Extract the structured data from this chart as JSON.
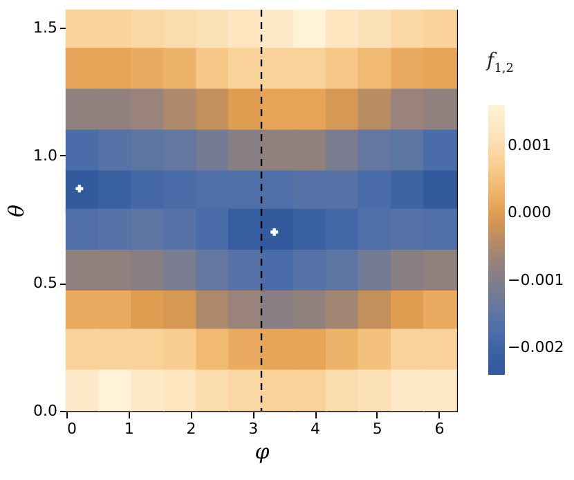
{
  "chart_data": {
    "type": "scatter",
    "xlabel": "φ",
    "ylabel": "θ",
    "clabel": "f$_{1,2}$",
    "series": [
      {
        "marker": "square",
        "x": [
          0.26,
          0.79,
          1.31,
          1.83,
          2.36,
          2.88,
          3.4,
          3.93,
          4.45,
          4.97,
          5.5,
          6.02,
          0.26,
          0.79,
          1.31,
          1.83,
          2.36,
          2.88,
          3.4,
          3.93,
          4.45,
          4.97,
          5.5,
          6.02,
          0.26,
          0.79,
          1.31,
          1.83,
          2.36,
          2.88,
          3.4,
          3.93,
          4.45,
          4.97,
          5.5,
          6.02,
          0.26,
          0.79,
          1.31,
          1.83,
          2.36,
          2.88,
          3.4,
          3.93,
          4.45,
          4.97,
          5.5,
          6.02,
          0.26,
          0.79,
          1.31,
          1.83,
          2.36,
          2.88,
          3.4,
          3.93,
          4.45,
          4.97,
          5.5,
          6.02,
          0.26,
          0.79,
          1.31,
          1.83,
          2.36,
          2.88,
          3.4,
          3.93,
          4.45,
          4.97,
          5.5,
          6.02,
          0.26,
          0.79,
          1.31,
          1.83,
          2.36,
          2.88,
          3.4,
          3.93,
          4.45,
          4.97,
          5.5,
          6.02,
          0.26,
          0.79,
          1.31,
          1.83,
          2.36,
          2.88,
          3.4,
          3.93,
          4.45,
          4.97,
          5.5,
          6.02,
          0.26,
          0.79,
          1.31,
          1.83,
          2.36,
          2.88,
          3.4,
          3.93,
          4.45,
          4.97,
          5.5,
          6.02,
          0.26,
          0.79,
          1.31,
          1.83,
          2.36,
          2.88,
          3.4,
          3.93,
          4.45,
          4.97,
          5.5,
          6.02
        ],
        "values": [
          1.49,
          1.49,
          1.49,
          1.49,
          1.49,
          1.49,
          1.49,
          1.49,
          1.49,
          1.49,
          1.49,
          1.49,
          1.34,
          1.34,
          1.34,
          1.34,
          1.34,
          1.34,
          1.34,
          1.34,
          1.34,
          1.34,
          1.34,
          1.34,
          1.18,
          1.18,
          1.18,
          1.18,
          1.18,
          1.18,
          1.18,
          1.18,
          1.18,
          1.18,
          1.18,
          1.18,
          1.02,
          1.02,
          1.02,
          1.02,
          1.02,
          1.02,
          1.02,
          1.02,
          1.02,
          1.02,
          1.02,
          1.02,
          0.86,
          0.86,
          0.86,
          0.86,
          0.86,
          0.86,
          0.86,
          0.86,
          0.86,
          0.86,
          0.86,
          0.86,
          0.71,
          0.71,
          0.71,
          0.71,
          0.71,
          0.71,
          0.71,
          0.71,
          0.71,
          0.71,
          0.71,
          0.71,
          0.55,
          0.55,
          0.55,
          0.55,
          0.55,
          0.55,
          0.55,
          0.55,
          0.55,
          0.55,
          0.55,
          0.55,
          0.39,
          0.39,
          0.39,
          0.39,
          0.39,
          0.39,
          0.39,
          0.39,
          0.39,
          0.39,
          0.39,
          0.39,
          0.24,
          0.24,
          0.24,
          0.24,
          0.24,
          0.24,
          0.24,
          0.24,
          0.24,
          0.24,
          0.24,
          0.24,
          0.08,
          0.08,
          0.08,
          0.08,
          0.08,
          0.08,
          0.08,
          0.08,
          0.08,
          0.08,
          0.08,
          0.08
        ],
        "cvalues": [
          0.0008,
          0.0008,
          0.0009,
          0.001,
          0.0011,
          0.0012,
          0.0013,
          0.0016,
          0.0012,
          0.0011,
          0.0009,
          0.0008,
          0.0001,
          0.0001,
          0.0002,
          0.0003,
          0.0006,
          0.0008,
          0.0008,
          0.0008,
          0.0006,
          0.0004,
          0.0002,
          0.0001,
          -0.0008,
          -0.0008,
          -0.0007,
          -0.0005,
          -0.0003,
          0.0,
          0.0001,
          0.0001,
          -0.0001,
          -0.0004,
          -0.0007,
          -0.0008,
          -0.0018,
          -0.0016,
          -0.0015,
          -0.0014,
          -0.0012,
          -0.0009,
          -0.0008,
          -0.0008,
          -0.0011,
          -0.0014,
          -0.0015,
          -0.0018,
          -0.0023,
          -0.0021,
          -0.0019,
          -0.0018,
          -0.0017,
          -0.0017,
          -0.0017,
          -0.0016,
          -0.0016,
          -0.0018,
          -0.002,
          -0.0023,
          -0.0017,
          -0.0016,
          -0.0015,
          -0.0016,
          -0.0018,
          -0.0022,
          -0.0023,
          -0.0021,
          -0.0019,
          -0.0017,
          -0.0016,
          -0.0017,
          -0.0008,
          -0.0008,
          -0.0009,
          -0.0011,
          -0.0014,
          -0.0016,
          -0.0018,
          -0.0016,
          -0.0015,
          -0.0012,
          -0.0009,
          -0.0008,
          0.0002,
          0.0002,
          0.0,
          -0.0001,
          -0.0005,
          -0.0007,
          -0.0009,
          -0.0008,
          -0.0006,
          -0.0003,
          0.0,
          0.0002,
          0.0008,
          0.0008,
          0.0008,
          0.0007,
          0.0004,
          0.0002,
          0.0001,
          0.0001,
          0.0003,
          0.0005,
          0.0008,
          0.0008,
          0.0013,
          0.0016,
          0.0013,
          0.0012,
          0.001,
          0.0009,
          0.0008,
          0.0008,
          0.001,
          0.0011,
          0.0013,
          0.0013
        ],
        "colors": [
          "#f9d29a",
          "#f9d29a",
          "#fad7a3",
          "#fbdcad",
          "#fce1b6",
          "#fde5bf",
          "#fde9c7",
          "#fff2d6",
          "#fde5bf",
          "#fce1b6",
          "#fad7a3",
          "#f9d29a",
          "#e5a458",
          "#e5a458",
          "#eaab60",
          "#eeb36a",
          "#f6c786",
          "#f9d29a",
          "#f9d29a",
          "#f9d29a",
          "#f6c786",
          "#f1ba73",
          "#eaab60",
          "#e5a458",
          "#90817e",
          "#90817e",
          "#99837a",
          "#ae8a6c",
          "#c3905c",
          "#df9d52",
          "#e5a458",
          "#e5a458",
          "#d69855",
          "#b98d64",
          "#99837a",
          "#90817e",
          "#4a6ca8",
          "#5672a6",
          "#5d75a3",
          "#65779f",
          "#737b95",
          "#887f84",
          "#90817e",
          "#90817e",
          "#7a7d8f",
          "#65779f",
          "#5d75a3",
          "#4a6ca8",
          "#335a9c",
          "#3a61a2",
          "#4468a6",
          "#4a6ca8",
          "#506fa8",
          "#506fa8",
          "#506fa8",
          "#5672a6",
          "#5672a6",
          "#4a6ca8",
          "#3e64a4",
          "#335a9c",
          "#506fa8",
          "#5672a6",
          "#5d75a3",
          "#5672a6",
          "#4a6ca8",
          "#365d9f",
          "#335a9c",
          "#3a61a2",
          "#4468a6",
          "#506fa8",
          "#5672a6",
          "#506fa8",
          "#90817e",
          "#90817e",
          "#887f84",
          "#7a7d8f",
          "#65779f",
          "#5672a6",
          "#4a6ca8",
          "#5672a6",
          "#5d75a3",
          "#737b95",
          "#887f84",
          "#90817e",
          "#eaab60",
          "#eaab60",
          "#df9d52",
          "#d69855",
          "#ae8a6c",
          "#99837a",
          "#887f84",
          "#90817e",
          "#a38674",
          "#c3905c",
          "#df9d52",
          "#eaab60",
          "#f9d29a",
          "#f9d29a",
          "#f9d29a",
          "#f8cd90",
          "#f1ba73",
          "#eaab60",
          "#e5a458",
          "#e5a458",
          "#eeb36a",
          "#f4c17d",
          "#f9d29a",
          "#f9d29a",
          "#fde9c7",
          "#fff2d6",
          "#fde9c7",
          "#fde5bf",
          "#fbdcad",
          "#fad7a3",
          "#f9d29a",
          "#f9d29a",
          "#fbdcad",
          "#fce1b6",
          "#fde9c7",
          "#fde9c7"
        ]
      },
      {
        "marker": "cross",
        "x": [
          0.21,
          3.35
        ],
        "values": [
          0.87,
          0.7
        ],
        "color": "#ffffff"
      }
    ],
    "clim": [
      -0.0024,
      0.0016
    ],
    "cticks": [
      {
        "value": -0.002,
        "label": "−0.002"
      },
      {
        "value": -0.001,
        "label": "−0.001"
      },
      {
        "value": 0,
        "label": "0.000"
      },
      {
        "value": 0.001,
        "label": "0.001"
      }
    ],
    "xlim": [
      0,
      6.2832
    ],
    "xticks": [
      0,
      1,
      2,
      3,
      4,
      5,
      6
    ],
    "ylim": [
      0,
      1.5708
    ],
    "yticks": [
      {
        "value": 0,
        "label": "0.0"
      },
      {
        "value": 0.5,
        "label": "0.5"
      },
      {
        "value": 1,
        "label": "1.0"
      },
      {
        "value": 1.5,
        "label": "1.5"
      }
    ],
    "ref_lines": [
      {
        "axis": "x",
        "value": 3.1416,
        "line_style": "dashed",
        "color": "#000000"
      }
    ],
    "grid": false
  }
}
